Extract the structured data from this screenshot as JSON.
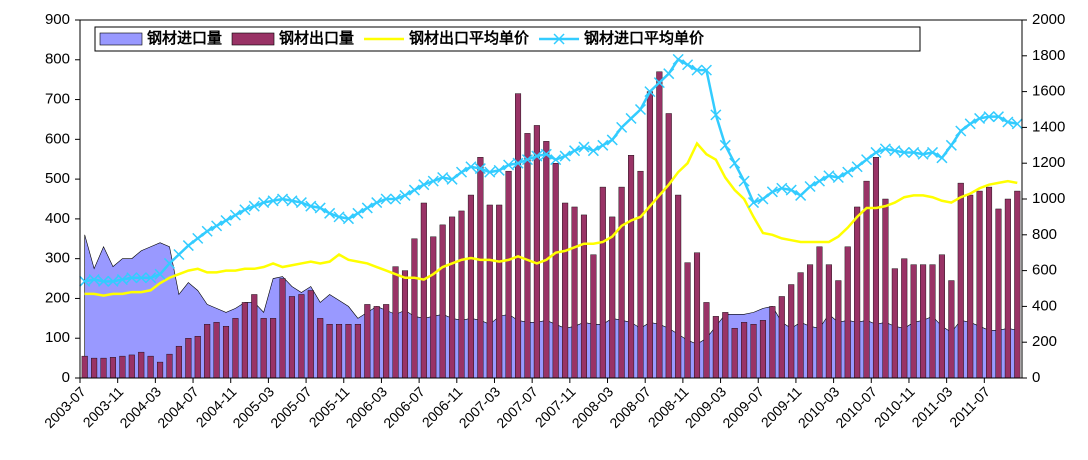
{
  "chart_data": {
    "type": "combo",
    "categories": [
      "2003-07",
      null,
      null,
      null,
      "2003-11",
      null,
      null,
      null,
      "2004-03",
      null,
      null,
      null,
      "2004-07",
      null,
      null,
      null,
      "2004-11",
      null,
      null,
      null,
      "2005-03",
      null,
      null,
      null,
      "2005-07",
      null,
      null,
      null,
      "2005-11",
      null,
      null,
      null,
      "2006-03",
      null,
      null,
      null,
      "2006-07",
      null,
      null,
      null,
      "2006-11",
      null,
      null,
      null,
      "2007-03",
      null,
      null,
      null,
      "2007-07",
      null,
      null,
      null,
      "2007-11",
      null,
      null,
      null,
      "2008-03",
      null,
      null,
      null,
      "2008-07",
      null,
      null,
      null,
      "2008-11",
      null,
      null,
      null,
      "2009-03",
      null,
      null,
      null,
      "2009-07",
      null,
      null,
      null,
      "2009-11",
      null,
      null,
      null,
      "2010-03",
      null,
      null,
      null,
      "2010-07",
      null,
      null,
      null,
      "2010-11",
      null,
      null,
      null,
      "2011-03",
      null,
      null,
      null,
      "2011-07",
      null,
      null,
      null
    ],
    "series": [
      {
        "name": "钢材进口量",
        "type": "area",
        "color": "#9999ff",
        "values": [
          360,
          275,
          330,
          280,
          300,
          300,
          320,
          330,
          340,
          330,
          210,
          240,
          220,
          185,
          175,
          165,
          175,
          190,
          190,
          165,
          250,
          255,
          230,
          215,
          230,
          190,
          210,
          195,
          180,
          150,
          165,
          180,
          170,
          160,
          170,
          155,
          150,
          155,
          160,
          150,
          145,
          150,
          145,
          135,
          155,
          160,
          145,
          140,
          140,
          145,
          135,
          125,
          130,
          140,
          135,
          135,
          150,
          145,
          140,
          125,
          140,
          135,
          125,
          110,
          95,
          85,
          100,
          130,
          160,
          160,
          160,
          165,
          175,
          180,
          140,
          125,
          140,
          130,
          125,
          160,
          140,
          145,
          140,
          145,
          135,
          140,
          130,
          125,
          140,
          145,
          155,
          130,
          115,
          145,
          140,
          130,
          120,
          120,
          125,
          120
        ]
      },
      {
        "name": "钢材出口量",
        "type": "bar",
        "color": "#993366",
        "values": [
          55,
          50,
          50,
          52,
          55,
          58,
          65,
          55,
          40,
          60,
          80,
          100,
          105,
          135,
          140,
          130,
          150,
          190,
          210,
          150,
          150,
          250,
          205,
          210,
          220,
          150,
          135,
          135,
          135,
          135,
          185,
          180,
          185,
          280,
          270,
          350,
          440,
          355,
          385,
          405,
          420,
          460,
          555,
          435,
          435,
          520,
          715,
          615,
          635,
          595,
          540,
          440,
          430,
          410,
          310,
          480,
          405,
          480,
          560,
          520,
          720,
          770,
          665,
          460,
          290,
          315,
          190,
          155,
          165,
          125,
          140,
          135,
          145,
          180,
          205,
          235,
          265,
          285,
          330,
          285,
          245,
          330,
          430,
          495,
          555,
          450,
          275,
          300,
          285,
          285,
          285,
          310,
          245,
          490,
          460,
          470,
          480,
          425,
          450,
          470
        ]
      },
      {
        "name": "钢材出口平均单价",
        "type": "line",
        "axis": "y2",
        "color": "#ffff00",
        "values": [
          470,
          470,
          460,
          470,
          470,
          480,
          480,
          490,
          530,
          560,
          580,
          600,
          610,
          590,
          590,
          600,
          600,
          610,
          610,
          620,
          640,
          620,
          630,
          640,
          650,
          640,
          650,
          690,
          660,
          650,
          640,
          620,
          600,
          580,
          560,
          560,
          550,
          580,
          620,
          640,
          660,
          670,
          660,
          660,
          650,
          660,
          680,
          660,
          640,
          660,
          700,
          710,
          730,
          750,
          750,
          760,
          790,
          850,
          880,
          900,
          960,
          1020,
          1080,
          1150,
          1200,
          1310,
          1250,
          1220,
          1120,
          1050,
          1000,
          900,
          810,
          800,
          780,
          770,
          760,
          760,
          760,
          760,
          790,
          840,
          900,
          950,
          950,
          960,
          980,
          1010,
          1020,
          1020,
          1010,
          990,
          980,
          1010,
          1030,
          1060,
          1080,
          1090,
          1100,
          1090
        ]
      },
      {
        "name": "钢材进口平均单价",
        "type": "line",
        "axis": "y2",
        "marker": "x",
        "color": "#33ccff",
        "values": [
          540,
          550,
          540,
          540,
          550,
          560,
          560,
          560,
          580,
          640,
          690,
          740,
          780,
          820,
          850,
          880,
          910,
          940,
          960,
          980,
          990,
          1000,
          990,
          980,
          960,
          950,
          920,
          900,
          890,
          920,
          950,
          980,
          1000,
          1000,
          1020,
          1050,
          1080,
          1100,
          1120,
          1110,
          1150,
          1180,
          1170,
          1150,
          1160,
          1190,
          1200,
          1220,
          1240,
          1250,
          1220,
          1240,
          1270,
          1290,
          1270,
          1300,
          1330,
          1400,
          1450,
          1500,
          1600,
          1650,
          1700,
          1780,
          1750,
          1720,
          1720,
          1470,
          1300,
          1200,
          1100,
          980,
          1000,
          1040,
          1060,
          1050,
          1020,
          1070,
          1100,
          1130,
          1120,
          1150,
          1180,
          1220,
          1260,
          1280,
          1270,
          1260,
          1260,
          1250,
          1260,
          1230,
          1300,
          1380,
          1420,
          1450,
          1460,
          1460,
          1430,
          1420
        ]
      }
    ],
    "ylim": [
      0,
      900
    ],
    "yticks": [
      0,
      100,
      200,
      300,
      400,
      500,
      600,
      700,
      800,
      900
    ],
    "y2lim": [
      0,
      2000
    ],
    "y2ticks": [
      0,
      200,
      400,
      600,
      800,
      1000,
      1200,
      1400,
      1600,
      1800,
      2000
    ],
    "legend": "top-left"
  }
}
